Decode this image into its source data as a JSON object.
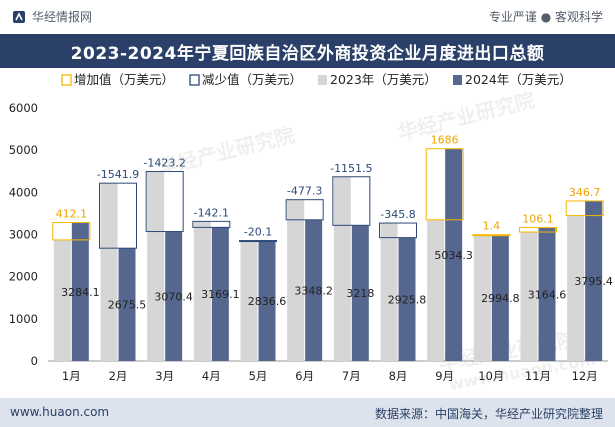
{
  "header": {
    "brand": "华经情报网",
    "tagline": "专业严谨 ● 客观科学",
    "title": "2023-2024年宁夏回族自治区外商投资企业月度进出口总额"
  },
  "footer": {
    "url": "www.huaon.com",
    "source": "数据来源：中国海关，华经产业研究院整理"
  },
  "watermark": "华经产业研究院",
  "watermark_url": "www.huaon.com",
  "colors": {
    "bar2023": "#d6d6d6",
    "bar2024": "#56678f",
    "increase": "#f5b800",
    "decrease": "#2c4a78",
    "title_bg": "#2a4068"
  },
  "chart_data": {
    "type": "bar",
    "title": "2023-2024年宁夏回族自治区外商投资企业月度进出口总额",
    "categories": [
      "1月",
      "2月",
      "3月",
      "4月",
      "5月",
      "6月",
      "7月",
      "8月",
      "9月",
      "10月",
      "11月",
      "12月"
    ],
    "series": [
      {
        "name": "2023年（万美元）",
        "values": [
          2872.0,
          4217.4,
          4493.6,
          3311.2,
          2856.7,
          3825.5,
          4369.5,
          3271.6,
          3348.3,
          2993.4,
          3058.5,
          3448.7
        ]
      },
      {
        "name": "2024年（万美元）",
        "values": [
          3284.1,
          2675.5,
          3070.4,
          3169.1,
          2836.6,
          3348.2,
          3218,
          2925.8,
          5034.3,
          2994.8,
          3164.6,
          3795.4
        ]
      }
    ],
    "change": {
      "increase_name": "增加值（万美元）",
      "decrease_name": "减少值（万美元）",
      "values": [
        412.1,
        -1541.9,
        -1423.2,
        -142.1,
        -20.1,
        -477.3,
        -1151.5,
        -345.8,
        1686,
        1.4,
        106.1,
        346.7
      ]
    },
    "ylim": [
      0,
      6000
    ],
    "yticks": [
      0,
      1000,
      2000,
      3000,
      4000,
      5000,
      6000
    ],
    "grid": false,
    "legend_position": "top"
  }
}
